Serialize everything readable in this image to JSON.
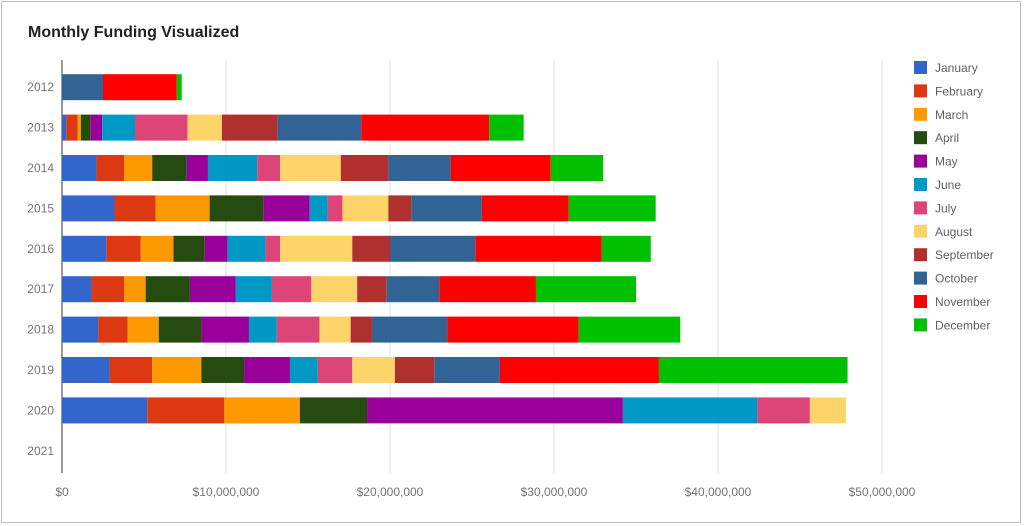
{
  "chart_data": {
    "type": "bar",
    "orientation": "horizontal",
    "stacked": true,
    "title": "Monthly Funding Visualized",
    "xlabel": "",
    "ylabel": "",
    "xlim": [
      0,
      50000000
    ],
    "x_ticks": [
      "$0",
      "$10,000,000",
      "$20,000,000",
      "$30,000,000",
      "$40,000,000",
      "$50,000,000"
    ],
    "grid": true,
    "legend_position": "right",
    "categories": [
      "2012",
      "2013",
      "2014",
      "2015",
      "2016",
      "2017",
      "2018",
      "2019",
      "2020",
      "2021"
    ],
    "series": [
      {
        "name": "January",
        "color": "#3366cc",
        "values": [
          0,
          250000,
          2100000,
          3200000,
          2700000,
          1800000,
          2200000,
          2900000,
          5200000,
          0
        ]
      },
      {
        "name": "February",
        "color": "#dc3912",
        "values": [
          0,
          700000,
          1700000,
          2500000,
          2100000,
          2000000,
          1800000,
          2600000,
          4700000,
          0
        ]
      },
      {
        "name": "March",
        "color": "#ff9900",
        "values": [
          0,
          200000,
          1700000,
          3300000,
          2000000,
          1300000,
          1900000,
          3000000,
          4600000,
          0
        ]
      },
      {
        "name": "April",
        "color": "#264b10",
        "values": [
          0,
          600000,
          2100000,
          3300000,
          1900000,
          2700000,
          2600000,
          2600000,
          4100000,
          0
        ]
      },
      {
        "name": "May",
        "color": "#990099",
        "values": [
          0,
          700000,
          1300000,
          2800000,
          1400000,
          2800000,
          2900000,
          2800000,
          15600000,
          0
        ]
      },
      {
        "name": "June",
        "color": "#0099c6",
        "values": [
          0,
          2000000,
          3000000,
          1100000,
          2300000,
          2200000,
          1700000,
          1700000,
          8200000,
          0
        ]
      },
      {
        "name": "July",
        "color": "#dd4477",
        "values": [
          0,
          3200000,
          1400000,
          900000,
          900000,
          2400000,
          2600000,
          2100000,
          3200000,
          0
        ]
      },
      {
        "name": "August",
        "color": "#fdd46a",
        "values": [
          0,
          2100000,
          3700000,
          2800000,
          4400000,
          2800000,
          1900000,
          2600000,
          2200000,
          0
        ]
      },
      {
        "name": "September",
        "color": "#b0302f",
        "values": [
          0,
          3400000,
          2900000,
          1400000,
          2300000,
          1800000,
          1300000,
          2400000,
          0,
          0
        ]
      },
      {
        "name": "October",
        "color": "#316395",
        "values": [
          2500000,
          5100000,
          3800000,
          4300000,
          5200000,
          3200000,
          4600000,
          4000000,
          0,
          0
        ]
      },
      {
        "name": "November",
        "color": "#ff0000",
        "values": [
          4500000,
          7800000,
          6100000,
          5300000,
          7700000,
          5900000,
          8000000,
          9700000,
          0,
          0
        ]
      },
      {
        "name": "December",
        "color": "#00c000",
        "values": [
          300000,
          2100000,
          3200000,
          5300000,
          3000000,
          6100000,
          6200000,
          11500000,
          0,
          0
        ]
      }
    ]
  }
}
